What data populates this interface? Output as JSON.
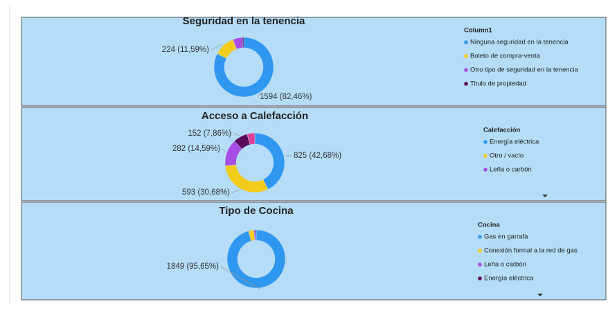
{
  "chart_data": [
    {
      "type": "donut",
      "title": "Seguridad en la tenencia",
      "legend_title": "Column1",
      "categories": [
        "Ninguna seguridad en la tenencia",
        "Boleto de compra-venta",
        "Otro tipo de seguridad en la tenencia",
        "Titulo de propiedad"
      ],
      "values": [
        1594,
        224,
        100,
        15
      ],
      "value_labels": [
        "1594 (82,46%)",
        "224 (11,59%)",
        null,
        null
      ],
      "colors": [
        "#2f97f0",
        "#f2cc1d",
        "#a84de6",
        "#5c0a5c"
      ]
    },
    {
      "type": "donut",
      "title": "Acceso a Calefacción",
      "legend_title": "Calefacción",
      "categories": [
        "Energía eléctrica",
        "Otro / vacío",
        "Leña o carbón",
        null,
        null
      ],
      "values": [
        825,
        593,
        282,
        152,
        81
      ],
      "value_labels": [
        "825 (42,68%)",
        "593 (30,68%)",
        "282 (14,59%)",
        "152 (7,86%)",
        null
      ],
      "colors": [
        "#2f97f0",
        "#f2cc1d",
        "#a84de6",
        "#5c0a5c",
        "#e0409a"
      ]
    },
    {
      "type": "donut",
      "title": "Tipo de Cocina",
      "legend_title": "Cocina",
      "categories": [
        "Gas en garrafa",
        "Conexión formal a la red de gas",
        "Leña o carbón",
        "Energía eléctrica"
      ],
      "values": [
        1849,
        60,
        15,
        9
      ],
      "value_labels": [
        "1849 (95,65%)",
        null,
        null,
        null
      ],
      "colors": [
        "#2f97f0",
        "#f2cc1d",
        "#a84de6",
        "#5c0a5c"
      ]
    }
  ]
}
